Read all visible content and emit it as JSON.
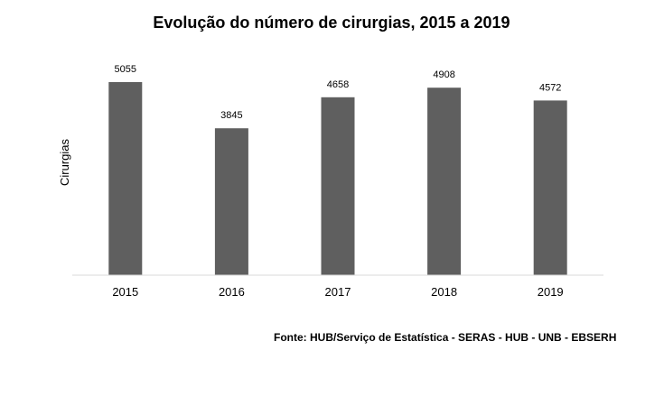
{
  "chart_data": {
    "type": "bar",
    "title": "Evolução do número de cirurgias, 2015 a 2019",
    "xlabel": "",
    "ylabel": "Cirurgias",
    "categories": [
      "2015",
      "2016",
      "2017",
      "2018",
      "2019"
    ],
    "values": [
      5055,
      3845,
      4658,
      4908,
      4572
    ],
    "ylim": [
      0,
      5055
    ],
    "grid": false,
    "legend": "none",
    "bar_color": "#5f5f5f",
    "axis_color": "#d9d9d9"
  },
  "source": "Fonte: HUB/Serviço de Estatística - SERAS - HUB - UNB - EBSERH"
}
